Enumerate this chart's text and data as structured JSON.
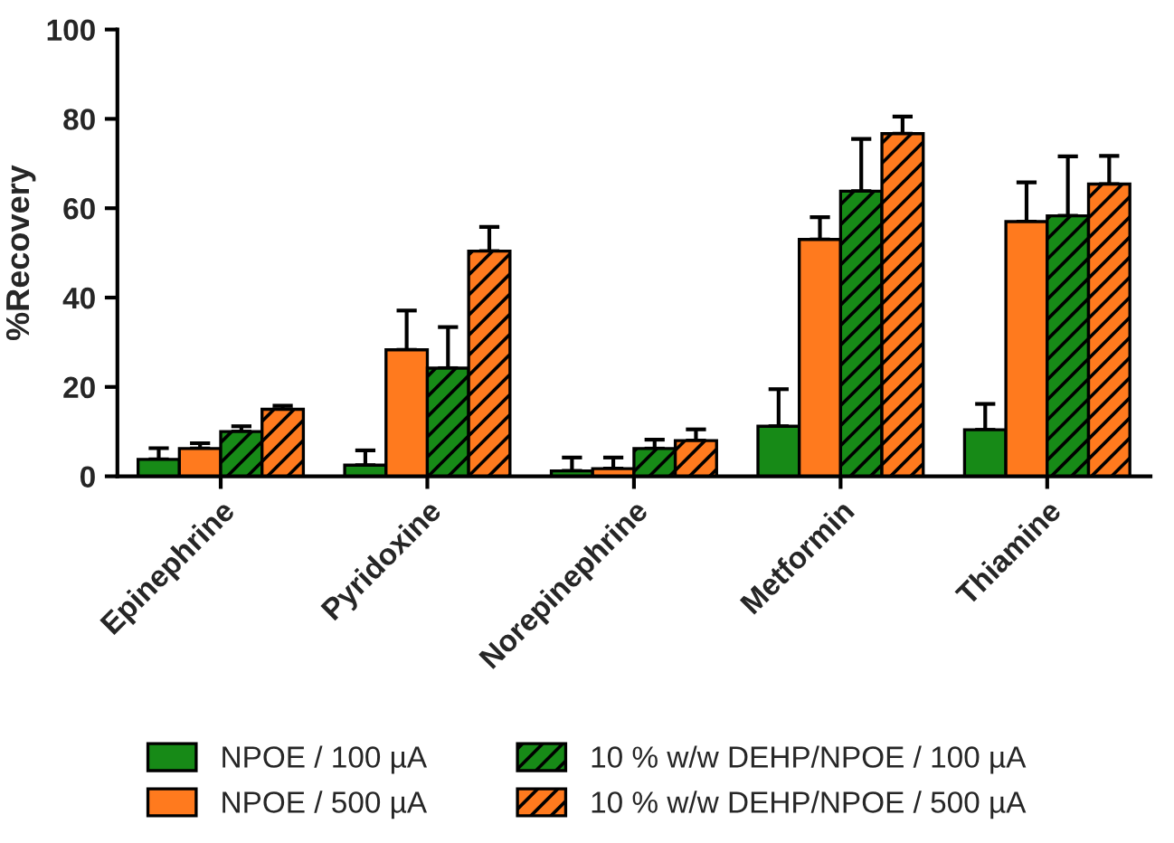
{
  "chart_data": {
    "type": "bar",
    "ylabel": "%Recovery",
    "categories": [
      "Epinephrine",
      "Pyridoxine",
      "Norepinephrine",
      "Metformin",
      "Thiamine"
    ],
    "series": [
      {
        "name": "NPOE / 100 µA",
        "color": "#178a17",
        "values": [
          3.8,
          2.5,
          1.2,
          11.2,
          10.4
        ],
        "errors": [
          [
            3.8,
            6.3
          ],
          [
            2.5,
            5.8
          ],
          [
            1.2,
            4.2
          ],
          [
            11.2,
            19.5
          ],
          [
            10.4,
            16.2
          ]
        ]
      },
      {
        "name": "NPOE / 500 µA",
        "color": "#ff7a1e",
        "values": [
          6.2,
          28.3,
          1.7,
          53,
          57
        ],
        "errors": [
          [
            6.2,
            7.4
          ],
          [
            28.3,
            37.1
          ],
          [
            1.7,
            4.2
          ],
          [
            53,
            58
          ],
          [
            57,
            65.8
          ]
        ]
      },
      {
        "name": "10 % w/w DEHP/NPOE / 100 µA",
        "color": "#178a17",
        "values": [
          10,
          24.2,
          6.2,
          63.8,
          58.3
        ],
        "errors": [
          [
            10,
            11.2
          ],
          [
            24.2,
            33.4
          ],
          [
            6.2,
            8.2
          ],
          [
            63.8,
            75.5
          ],
          [
            58.3,
            71.6
          ]
        ]
      },
      {
        "name": "10 % w/w DEHP/NPOE / 500 µA",
        "color": "#ff7a1e",
        "values": [
          15,
          50.4,
          8,
          76.7,
          65.4
        ],
        "errors": [
          [
            15,
            15.8
          ],
          [
            50.4,
            55.8
          ],
          [
            8,
            10.5
          ],
          [
            76.7,
            80.5
          ],
          [
            65.4,
            71.7
          ]
        ]
      }
    ],
    "ylim": [
      0,
      100
    ],
    "yticks": [
      0,
      20,
      40,
      60,
      80,
      100
    ],
    "grid": false,
    "legend": "bottom"
  }
}
